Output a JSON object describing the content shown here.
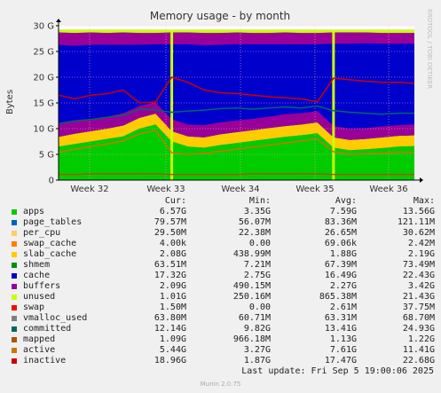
{
  "chart_data": {
    "type": "area",
    "title": "Memory usage - by month",
    "ylabel": "Bytes",
    "ylim": [
      0,
      30
    ],
    "y_ticks": [
      "0",
      "5 G",
      "10 G",
      "15 G",
      "20 G",
      "25 G",
      "30 G"
    ],
    "x_ticks": [
      "Week 32",
      "Week 33",
      "Week 34",
      "Week 35",
      "Week 36"
    ],
    "stacked_series": [
      {
        "name": "apps",
        "color": "#00cc00",
        "values": [
          6.5,
          7.0,
          7.5,
          8.0,
          8.5,
          10.0,
          10.8,
          7.5,
          6.5,
          6.3,
          6.8,
          7.2,
          7.6,
          8.0,
          8.4,
          8.7,
          9.1,
          6.3,
          5.8,
          6.0,
          6.2,
          6.5,
          6.6
        ]
      },
      {
        "name": "slab_cache",
        "color": "#ffcc00",
        "values": [
          1.9,
          2.0,
          2.0,
          2.0,
          2.1,
          2.1,
          2.1,
          2.0,
          2.0,
          2.0,
          2.1,
          2.1,
          2.1,
          2.1,
          2.1,
          2.1,
          2.1,
          2.0,
          2.0,
          2.0,
          2.1,
          2.1,
          2.1
        ]
      },
      {
        "name": "buffers",
        "color": "#990099",
        "values": [
          2.4,
          2.5,
          2.4,
          2.3,
          2.4,
          2.3,
          2.2,
          2.3,
          2.3,
          2.4,
          2.3,
          2.3,
          2.2,
          2.2,
          2.3,
          2.2,
          2.2,
          2.2,
          2.2,
          2.1,
          2.1,
          2.1,
          2.1
        ]
      },
      {
        "name": "unused",
        "color": "#ccff00",
        "values": [
          0.5,
          0.6,
          0.5,
          0.6,
          0.5,
          0.6,
          0.6,
          0.5,
          0.5,
          0.6,
          0.6,
          0.5,
          0.6,
          0.6,
          0.5,
          0.6,
          0.6,
          0.5,
          0.5,
          0.5,
          0.6,
          0.6,
          0.6
        ]
      }
    ],
    "line_series": [
      {
        "name": "inactive",
        "color": "#cc0000",
        "values": [
          16.5,
          15.8,
          16.5,
          16.8,
          17.5,
          15.0,
          15.2,
          20.0,
          19.0,
          17.5,
          17.0,
          16.8,
          16.5,
          16.2,
          16.0,
          15.8,
          15.2,
          19.8,
          19.5,
          19.2,
          19.0,
          19.0,
          18.8
        ]
      },
      {
        "name": "committed",
        "color": "#006666",
        "values": [
          11.0,
          11.5,
          11.8,
          12.2,
          12.6,
          13.8,
          13.6,
          13.2,
          13.4,
          13.6,
          13.9,
          14.0,
          13.8,
          14.0,
          14.2,
          14.0,
          14.4,
          13.5,
          13.2,
          13.0,
          12.8,
          13.0,
          13.0
        ]
      },
      {
        "name": "active",
        "color": "#cc7700",
        "values": [
          5.4,
          6.0,
          6.5,
          7.0,
          7.6,
          9.0,
          9.6,
          5.3,
          5.0,
          5.2,
          5.6,
          6.0,
          6.4,
          6.8,
          7.2,
          7.6,
          8.0,
          5.5,
          5.0,
          5.1,
          5.2,
          5.4,
          5.4
        ]
      },
      {
        "name": "mapped",
        "color": "#aa5500",
        "values": [
          1.1,
          1.1,
          1.2,
          1.2,
          1.2,
          1.2,
          1.2,
          1.1,
          1.1,
          1.1,
          1.1,
          1.1,
          1.2,
          1.2,
          1.2,
          1.2,
          1.2,
          1.1,
          1.1,
          1.1,
          1.1,
          1.1,
          1.1
        ]
      }
    ],
    "dips": [
      7,
      17
    ],
    "grid": true
  },
  "legend": {
    "headers": [
      "Cur:",
      "Min:",
      "Avg:",
      "Max:"
    ],
    "rows": [
      {
        "name": "apps",
        "color": "#00cc00",
        "cur": "6.57G",
        "min": "3.35G",
        "avg": "7.59G",
        "max": "13.56G"
      },
      {
        "name": "page_tables",
        "color": "#0066b3",
        "cur": "79.57M",
        "min": "56.07M",
        "avg": "83.36M",
        "max": "121.11M"
      },
      {
        "name": "per_cpu",
        "color": "#ffcc66",
        "cur": "29.50M",
        "min": "22.38M",
        "avg": "26.65M",
        "max": "30.62M"
      },
      {
        "name": "swap_cache",
        "color": "#ff8000",
        "cur": "4.00k",
        "min": "0.00",
        "avg": "69.06k",
        "max": "2.42M"
      },
      {
        "name": "slab_cache",
        "color": "#ffcc00",
        "cur": "2.08G",
        "min": "438.99M",
        "avg": "1.88G",
        "max": "2.19G"
      },
      {
        "name": "shmem",
        "color": "#008f00",
        "cur": "63.51M",
        "min": "7.21M",
        "avg": "67.39M",
        "max": "73.49M"
      },
      {
        "name": "cache",
        "color": "#0000cc",
        "cur": "17.32G",
        "min": "2.75G",
        "avg": "16.49G",
        "max": "22.43G"
      },
      {
        "name": "buffers",
        "color": "#990099",
        "cur": "2.09G",
        "min": "490.15M",
        "avg": "2.27G",
        "max": "3.42G"
      },
      {
        "name": "unused",
        "color": "#ccff00",
        "cur": "1.01G",
        "min": "250.16M",
        "avg": "865.38M",
        "max": "21.43G"
      },
      {
        "name": "swap",
        "color": "#ff0000",
        "cur": "1.50M",
        "min": "0.00",
        "avg": "2.61M",
        "max": "37.75M"
      },
      {
        "name": "vmalloc_used",
        "color": "#808080",
        "cur": "63.80M",
        "min": "60.71M",
        "avg": "63.31M",
        "max": "68.70M"
      },
      {
        "name": "committed",
        "color": "#006666",
        "cur": "12.14G",
        "min": "9.82G",
        "avg": "13.41G",
        "max": "24.93G"
      },
      {
        "name": "mapped",
        "color": "#aa5500",
        "cur": "1.09G",
        "min": "966.18M",
        "avg": "1.13G",
        "max": "1.22G"
      },
      {
        "name": "active",
        "color": "#cc7700",
        "cur": "5.44G",
        "min": "3.27G",
        "avg": "7.61G",
        "max": "11.41G"
      },
      {
        "name": "inactive",
        "color": "#cc0000",
        "cur": "18.96G",
        "min": "1.87G",
        "avg": "17.47G",
        "max": "22.68G"
      }
    ]
  },
  "footer": {
    "last_update": "Last update:  Fri Sep  5 19:00:06 2025",
    "generator": "Munin 2.0.75",
    "side_text": "RRDTOOL / TOBI OETIKER"
  },
  "colors": {
    "cache": "#0000cc",
    "background": "#f0f0f0",
    "plot": "#ffffff"
  }
}
